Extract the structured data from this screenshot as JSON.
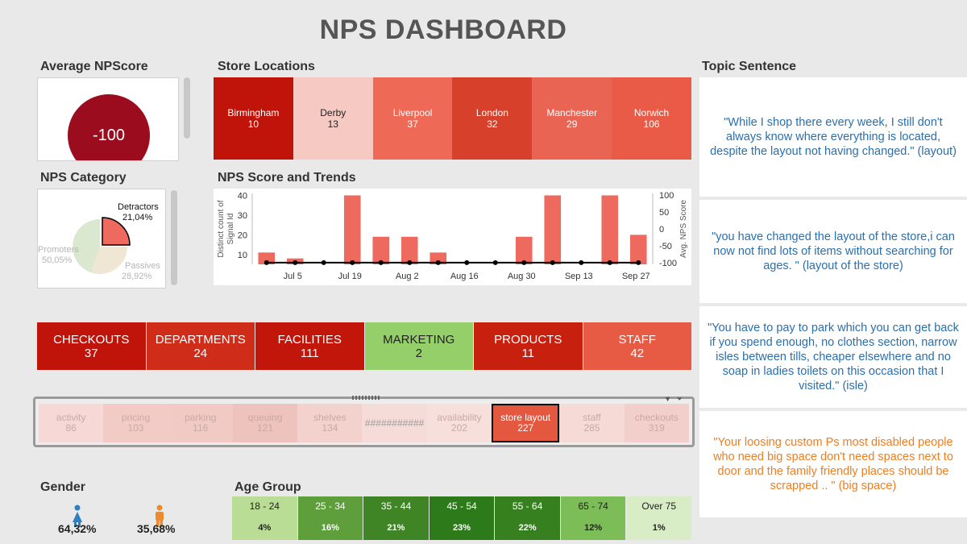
{
  "title": "NPS DASHBOARD",
  "avg": {
    "label": "Average NPScore",
    "value": "-100"
  },
  "stores": {
    "label": "Store Locations",
    "items": [
      {
        "name": "Birmingham",
        "count": "10",
        "color": "#c0140a",
        "text": "#ffffff"
      },
      {
        "name": "Derby",
        "count": "13",
        "color": "#f6c9c3",
        "text": "#222222"
      },
      {
        "name": "Liverpool",
        "count": "37",
        "color": "#ee6a56",
        "text": "#ffffff"
      },
      {
        "name": "London",
        "count": "32",
        "color": "#d7402a",
        "text": "#ffffff"
      },
      {
        "name": "Manchester",
        "count": "29",
        "color": "#ea6453",
        "text": "#ffffff"
      },
      {
        "name": "Norwich",
        "count": "106",
        "color": "#e95b46",
        "text": "#ffffff"
      }
    ]
  },
  "category": {
    "label": "NPS Category",
    "detractors_label": "Detractors",
    "detractors_pct": "21,04%",
    "promoters_label": "Promoters",
    "promoters_pct": "50,05%",
    "passives_label": "Passives",
    "passives_pct": "28,92%"
  },
  "trend": {
    "label": "NPS Score and Trends",
    "ylabel_left_1": "Distinct count of",
    "ylabel_left_2": "Signal Id",
    "ylabel_right": "Avg. NPS Score"
  },
  "topics": [
    {
      "name": "CHECKOUTS",
      "count": "37",
      "color": "#c0140a",
      "text": "#ffffff"
    },
    {
      "name": "DEPARTMENTS",
      "count": "24",
      "color": "#cf2d1a",
      "text": "#ffffff"
    },
    {
      "name": "FACILITIES",
      "count": "111",
      "color": "#c3160b",
      "text": "#ffffff"
    },
    {
      "name": "MARKETING",
      "count": "2",
      "color": "#95cf6a",
      "text": "#222222"
    },
    {
      "name": "PRODUCTS",
      "count": "11",
      "color": "#c8200f",
      "text": "#ffffff"
    },
    {
      "name": "STAFF",
      "count": "42",
      "color": "#e75a44",
      "text": "#ffffff"
    }
  ],
  "words": [
    {
      "name": "activity",
      "count": "86",
      "color": "#f6d9d6",
      "selected": false
    },
    {
      "name": "pricing",
      "count": "103",
      "color": "#f3cbc6",
      "selected": false
    },
    {
      "name": "parking",
      "count": "116",
      "color": "#f2cac5",
      "selected": false
    },
    {
      "name": "queuing",
      "count": "121",
      "color": "#efc3bd",
      "selected": false
    },
    {
      "name": "shelves",
      "count": "134",
      "color": "#f3d1cc",
      "selected": false
    },
    {
      "name": "###########",
      "count": "",
      "color": "#f6dcd9",
      "selected": false
    },
    {
      "name": "availability",
      "count": "202",
      "color": "#f7dfdc",
      "selected": false
    },
    {
      "name": "store layout",
      "count": "227",
      "color": "#e55840",
      "selected": true
    },
    {
      "name": "staff",
      "count": "285",
      "color": "#f6dad6",
      "selected": false
    },
    {
      "name": "checkouts",
      "count": "319",
      "color": "#f2cfca",
      "selected": false
    }
  ],
  "gender": {
    "label": "Gender",
    "female_pct": "64,32%",
    "female_color": "#2e7fc1",
    "male_pct": "35,68%",
    "male_color": "#ef8a2c"
  },
  "age": {
    "label": "Age Group",
    "items": [
      {
        "name": "18 - 24",
        "pct": "4%",
        "color": "#b9dd95",
        "text": "#222222"
      },
      {
        "name": "25 - 34",
        "pct": "16%",
        "color": "#5e9f3c",
        "text": "#ffffff"
      },
      {
        "name": "35 - 44",
        "pct": "21%",
        "color": "#3f8526",
        "text": "#ffffff"
      },
      {
        "name": "45 - 54",
        "pct": "23%",
        "color": "#2c7a1a",
        "text": "#ffffff"
      },
      {
        "name": "55 - 64",
        "pct": "22%",
        "color": "#368020",
        "text": "#ffffff"
      },
      {
        "name": "65 - 74",
        "pct": "12%",
        "color": "#7dbd57",
        "text": "#222222"
      },
      {
        "name": "Over 75",
        "pct": "1%",
        "color": "#d8edc5",
        "text": "#222222"
      }
    ]
  },
  "sentences": {
    "label": "Topic Sentence",
    "items": [
      {
        "text": "\"While I shop there every week, I still don't always know where everything is located, despite the layout not having changed.\" (layout)",
        "color": "#2a6fad"
      },
      {
        "text": "\"you have changed the layout of the store,i can now not find lots of items without searching for ages. \" (layout of the store)",
        "color": "#2a6fad"
      },
      {
        "text": "\"You have to pay to park which you can get back if you spend enough, no clothes section, narrow isles between tills, cheaper elsewhere and no soap in ladies toilets on this occasion that I visited.\" (isle)",
        "color": "#2a6fad"
      },
      {
        "text": "\"Your loosing custom  Ps most disabled people who need big space don't need spaces next to door and the family friendly places should be scrapped .. \" (big space)",
        "color": "#ef7e22"
      }
    ]
  },
  "chart_data": {
    "type": "bar",
    "x": [
      "Jun 28",
      "Jul 5",
      "Jul 12",
      "Jul 19",
      "Jul 26",
      "Aug 2",
      "Aug 9",
      "Aug 16",
      "Aug 23",
      "Aug 30",
      "Sep 6",
      "Sep 13",
      "Sep 20",
      "Sep 27"
    ],
    "xticks": [
      "Jul 5",
      "Jul 19",
      "Aug 2",
      "Aug 16",
      "Aug 30",
      "Sep 13",
      "Sep 27"
    ],
    "series": [
      {
        "values": [
          11,
          8,
          0,
          40,
          19,
          19,
          11,
          5,
          0,
          19,
          40,
          0,
          40,
          20
        ],
        "color": "#ee6a5f"
      },
      {
        "values": [
          -100,
          -100,
          -100,
          -100,
          -100,
          -100,
          -100,
          -100,
          -100,
          -100,
          -100,
          -100,
          -100,
          -100
        ],
        "color": "#000000"
      }
    ],
    "ylabel": "Distinct count of Signal Id",
    "ylabel_right": "Avg. NPS Score",
    "yticks_left": [
      10,
      20,
      30,
      40
    ],
    "yticks_right": [
      -100,
      -50,
      0,
      50,
      100
    ],
    "ylim": [
      5,
      41
    ],
    "ylim_right": [
      -105,
      105
    ]
  }
}
